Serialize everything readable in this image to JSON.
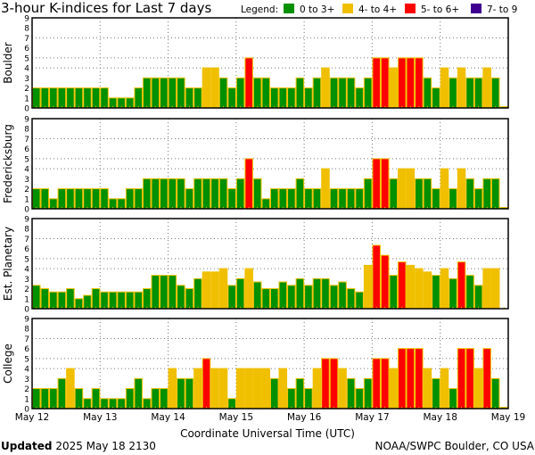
{
  "chart_data": {
    "type": "bar",
    "title": "3-hour K-indices for Last 7 days",
    "legend": {
      "label": "Legend:",
      "placement": "top-right",
      "entries": [
        {
          "label": "0 to 3+",
          "color": "#009000"
        },
        {
          "label": "4- to 4+",
          "color": "#f0c000"
        },
        {
          "label": "5- to 6+",
          "color": "#ff0000"
        },
        {
          "label": "7- to 9",
          "color": "#400090"
        }
      ]
    },
    "xlabel": "Coordinate Universal Time (UTC)",
    "x_ticks": [
      "May 12",
      "May 13",
      "May 14",
      "May 15",
      "May 16",
      "May 17",
      "May 18",
      "May 19"
    ],
    "y_ticks": [
      "0",
      "1",
      "2",
      "3",
      "4",
      "5",
      "6",
      "7",
      "8",
      "9"
    ],
    "ylim": [
      0,
      9
    ],
    "grid": {
      "horizontal_dotted_at": [
        4,
        5,
        7
      ],
      "vertical_dotted_at_days": true
    },
    "bars_per_day": 8,
    "panels": [
      {
        "name": "Boulder",
        "values": [
          2,
          2,
          2,
          2,
          2,
          2,
          2,
          2,
          2,
          1,
          1,
          1,
          2,
          3,
          3,
          3,
          3,
          3,
          2,
          2,
          4,
          4,
          3,
          2,
          3,
          5,
          3,
          3,
          2,
          2,
          2,
          3,
          2,
          3,
          4,
          3,
          3,
          3,
          2,
          3,
          5,
          5,
          4,
          5,
          5,
          5,
          3,
          2,
          4,
          3,
          4,
          3,
          3,
          4,
          3,
          0
        ]
      },
      {
        "name": "Fredericksburg",
        "values": [
          2,
          2,
          1,
          2,
          2,
          2,
          2,
          2,
          2,
          1,
          1,
          2,
          2,
          3,
          3,
          3,
          3,
          3,
          2,
          3,
          3,
          3,
          3,
          2,
          3,
          5,
          3,
          1,
          2,
          2,
          2,
          3,
          2,
          2,
          4,
          2,
          2,
          2,
          2,
          3,
          5,
          5,
          3,
          4,
          4,
          3,
          3,
          2,
          4,
          2,
          4,
          3,
          2,
          3,
          3,
          0
        ]
      },
      {
        "name": "Est. Planetary",
        "values": [
          2.33,
          2,
          1.67,
          1.67,
          2,
          1,
          1.33,
          2,
          1.67,
          1.67,
          1.67,
          1.67,
          1.67,
          2,
          3.33,
          3.33,
          3.33,
          2.33,
          2,
          3,
          3.67,
          3.67,
          4,
          2.33,
          3,
          4,
          2.67,
          2,
          2,
          2.67,
          2.33,
          3,
          2.33,
          3,
          3,
          2.33,
          2.67,
          2,
          1.67,
          4.33,
          6.33,
          5.33,
          3.33,
          4.67,
          4.33,
          4,
          3.67,
          3.33,
          4,
          3,
          4.67,
          3.33,
          2.33,
          4,
          4,
          null
        ]
      },
      {
        "name": "College",
        "values": [
          2,
          2,
          2,
          3,
          4,
          2,
          1,
          2,
          1,
          1,
          1,
          2,
          3,
          1,
          2,
          2,
          4,
          3,
          3,
          4,
          5,
          4,
          4,
          1,
          4,
          4,
          4,
          4,
          3,
          4,
          2,
          3,
          2,
          4,
          5,
          5,
          4,
          3,
          2,
          3,
          5,
          5,
          4,
          6,
          6,
          6,
          4,
          3,
          4,
          2,
          6,
          6,
          4,
          6,
          3,
          0
        ]
      }
    ]
  },
  "footer": {
    "updated_label": "Updated",
    "updated_value": "2025 May 18 2130",
    "credit": "NOAA/SWPC Boulder, CO USA"
  }
}
